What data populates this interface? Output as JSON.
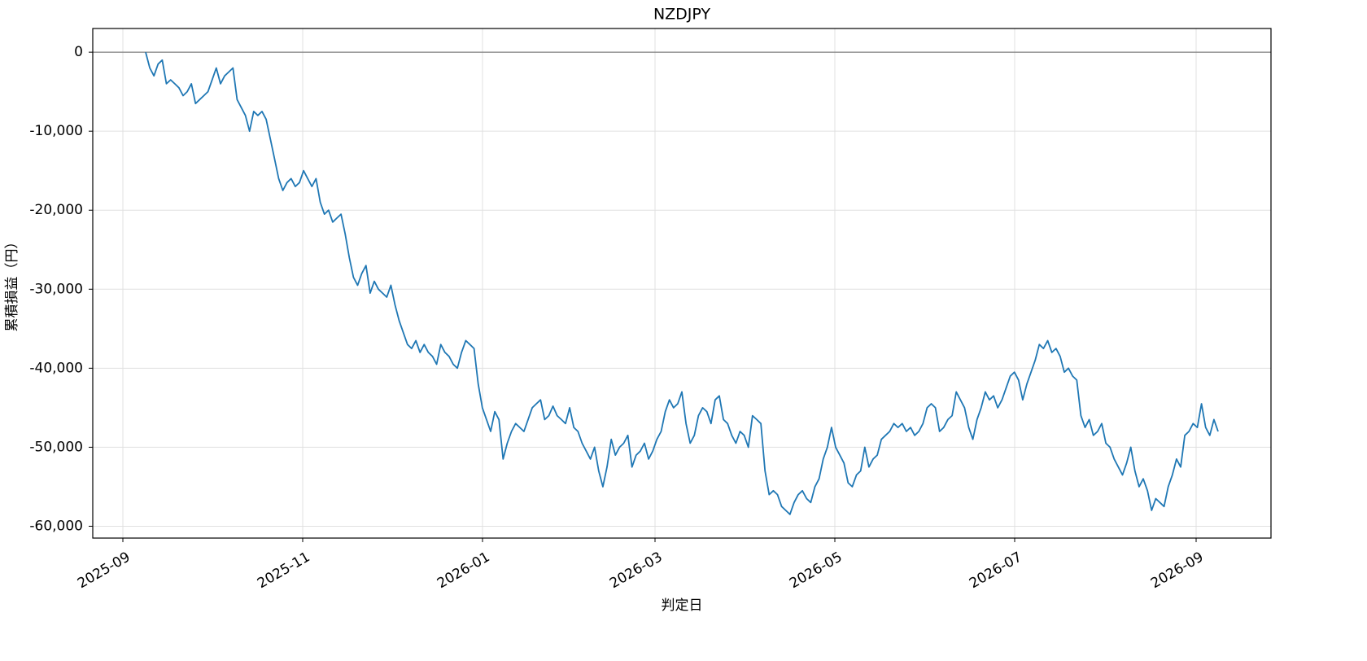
{
  "chart_data": {
    "type": "line",
    "title": "NZDJPY",
    "x_label": "判定日",
    "y_label": "累積損益（円）",
    "xticks": [
      "2025-09",
      "2025-11",
      "2026-01",
      "2026-03",
      "2026-05",
      "2026-07",
      "2026-09"
    ],
    "ylim": [
      -61500,
      3000
    ],
    "yticks": [
      {
        "value": -60000,
        "label": "-60,000"
      },
      {
        "value": -50000,
        "label": "-50,000"
      },
      {
        "value": -40000,
        "label": "-40,000"
      },
      {
        "value": -30000,
        "label": "-30,000"
      },
      {
        "value": -20000,
        "label": "-20,000"
      },
      {
        "value": -10000,
        "label": "-10,000"
      },
      0
    ],
    "grid": true,
    "reference_line": 0,
    "reference_color": "#808080",
    "series": [
      {
        "color": "#1f77b4",
        "values": [
          0,
          -2000,
          -3000,
          -1500,
          -1000,
          -4000,
          -3500,
          -4000,
          -4500,
          -5500,
          -5000,
          -4000,
          -6500,
          -6000,
          -5500,
          -5000,
          -3500,
          -2000,
          -4000,
          -3000,
          -2500,
          -2000,
          -6000,
          -7000,
          -8000,
          -10000,
          -7500,
          -8000,
          -7500,
          -8500,
          -11000,
          -13500,
          -16000,
          -17500,
          -16500,
          -16000,
          -17000,
          -16500,
          -15000,
          -16000,
          -17000,
          -16000,
          -19000,
          -20500,
          -20000,
          -21500,
          -21000,
          -20500,
          -23000,
          -26000,
          -28500,
          -29500,
          -28000,
          -27000,
          -30500,
          -29000,
          -30000,
          -30500,
          -31000,
          -29500,
          -32000,
          -34000,
          -35500,
          -37000,
          -37500,
          -36500,
          -38000,
          -37000,
          -38000,
          -38500,
          -39500,
          -37000,
          -38000,
          -38500,
          -39500,
          -40000,
          -38000,
          -36500,
          -37000,
          -37500,
          -42000,
          -45000,
          -46500,
          -48000,
          -45500,
          -46500,
          -51500,
          -49500,
          -48000,
          -47000,
          -47500,
          -48000,
          -46500,
          -45000,
          -44500,
          -44000,
          -46500,
          -46000,
          -44800,
          -46000,
          -46500,
          -47000,
          -45000,
          -47500,
          -48000,
          -49500,
          -50500,
          -51500,
          -50000,
          -53000,
          -55000,
          -52500,
          -49000,
          -51000,
          -50000,
          -49500,
          -48500,
          -52500,
          -51000,
          -50500,
          -49500,
          -51500,
          -50500,
          -49000,
          -48000,
          -45500,
          -44000,
          -45000,
          -44500,
          -43000,
          -47000,
          -49500,
          -48500,
          -46000,
          -45000,
          -45500,
          -47000,
          -44000,
          -43500,
          -46500,
          -47000,
          -48500,
          -49500,
          -48000,
          -48500,
          -50000,
          -46000,
          -46500,
          -47000,
          -53000,
          -56000,
          -55500,
          -56000,
          -57500,
          -58000,
          -58500,
          -57000,
          -56000,
          -55500,
          -56500,
          -57000,
          -55000,
          -54000,
          -51500,
          -50000,
          -47500,
          -50000,
          -51000,
          -52000,
          -54500,
          -55000,
          -53500,
          -53000,
          -50000,
          -52500,
          -51500,
          -51000,
          -49000,
          -48500,
          -48000,
          -47000,
          -47500,
          -47000,
          -48000,
          -47500,
          -48500,
          -48000,
          -47000,
          -45000,
          -44500,
          -45000,
          -48000,
          -47500,
          -46500,
          -46000,
          -43000,
          -44000,
          -45000,
          -47500,
          -49000,
          -46500,
          -45000,
          -43000,
          -44000,
          -43500,
          -45000,
          -44000,
          -42500,
          -41000,
          -40500,
          -41500,
          -44000,
          -42000,
          -40500,
          -39000,
          -37000,
          -37500,
          -36500,
          -38000,
          -37500,
          -38500,
          -40500,
          -40000,
          -41000,
          -41500,
          -46000,
          -47500,
          -46500,
          -48500,
          -48000,
          -47000,
          -49500,
          -50000,
          -51500,
          -52500,
          -53500,
          -52000,
          -50000,
          -53000,
          -55000,
          -54000,
          -55500,
          -58000,
          -56500,
          -57000,
          -57500,
          -55000,
          -53500,
          -51500,
          -52500,
          -48500,
          -48000,
          -47000,
          -47500,
          -44500,
          -47500,
          -48500,
          -46500,
          -48000
        ]
      }
    ]
  }
}
